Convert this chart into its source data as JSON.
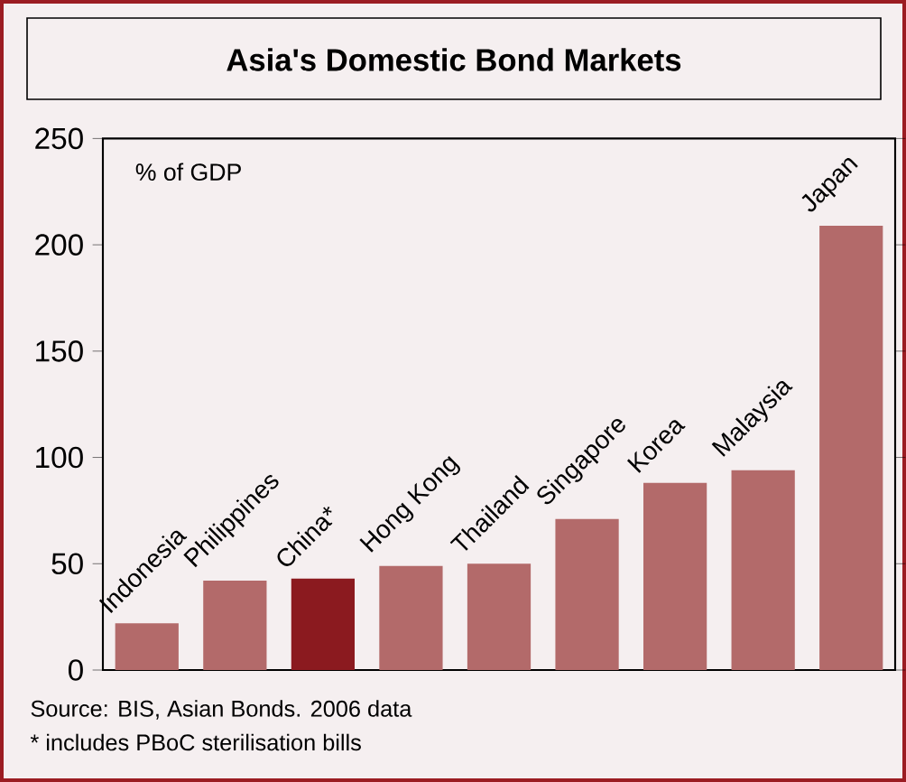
{
  "chart_data": {
    "type": "bar",
    "title": "Asia's Domestic Bond Markets",
    "ylabel": "% of GDP",
    "categories": [
      "Indonesia",
      "Philippines",
      "China*",
      "Hong Kong",
      "Thailand",
      "Singapore",
      "Korea",
      "Malaysia",
      "Japan"
    ],
    "values": [
      22,
      42,
      43,
      49,
      50,
      71,
      88,
      94,
      209
    ],
    "colors": [
      "#b36a6a",
      "#b36a6a",
      "#8b1a1f",
      "#b36a6a",
      "#b36a6a",
      "#b36a6a",
      "#b36a6a",
      "#b36a6a",
      "#b36a6a"
    ],
    "ylim": [
      0,
      250
    ],
    "yticks": [
      0,
      50,
      100,
      150,
      200,
      250
    ],
    "annotations": [
      "Source: BIS, Asian Bonds. 2006 data",
      "* includes PBoC sterilisation bills"
    ]
  }
}
